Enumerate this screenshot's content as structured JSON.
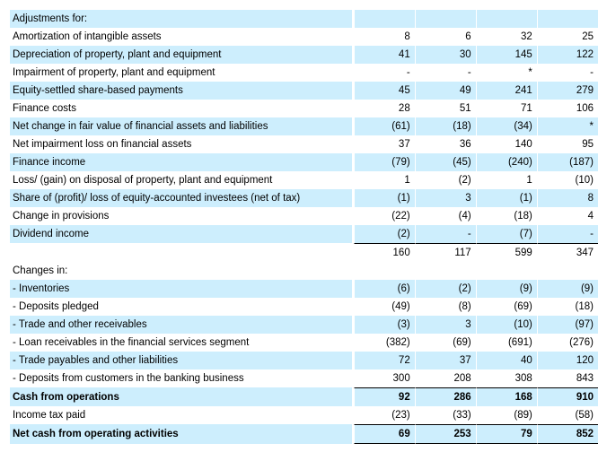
{
  "rows": [
    {
      "label": "Adjustments for:",
      "values": [
        "",
        "",
        "",
        ""
      ],
      "shaded": true
    },
    {
      "label": "Amortization of intangible assets",
      "values": [
        "8",
        "6",
        "32",
        "25"
      ]
    },
    {
      "label": "Depreciation of property, plant and equipment",
      "values": [
        "41",
        "30",
        "145",
        "122"
      ],
      "shaded": true
    },
    {
      "label": "Impairment of property, plant and equipment",
      "values": [
        "-",
        "-",
        "*",
        "-"
      ]
    },
    {
      "label": "Equity-settled share-based payments",
      "values": [
        "45",
        "49",
        "241",
        "279"
      ],
      "shaded": true
    },
    {
      "label": "Finance costs",
      "values": [
        "28",
        "51",
        "71",
        "106"
      ]
    },
    {
      "label": "Net change in fair value of financial assets and liabilities",
      "values": [
        "(61)",
        "(18)",
        "(34)",
        "*"
      ],
      "shaded": true
    },
    {
      "label": "Net impairment loss on financial assets",
      "values": [
        "37",
        "36",
        "140",
        "95"
      ]
    },
    {
      "label": "Finance income",
      "values": [
        "(79)",
        "(45)",
        "(240)",
        "(187)"
      ],
      "shaded": true
    },
    {
      "label": "Loss/ (gain) on disposal of property, plant and equipment",
      "values": [
        "1",
        "(2)",
        "1",
        "(10)"
      ]
    },
    {
      "label": "Share of (profit)/ loss of equity-accounted investees (net of tax)",
      "values": [
        "(1)",
        "3",
        "(1)",
        "8"
      ],
      "shaded": true
    },
    {
      "label": "Change in provisions",
      "values": [
        "(22)",
        "(4)",
        "(18)",
        "4"
      ]
    },
    {
      "label": "Dividend income",
      "values": [
        "(2)",
        "-",
        "(7)",
        "-"
      ],
      "shaded": true
    },
    {
      "label": "",
      "values": [
        "160",
        "117",
        "599",
        "347"
      ],
      "top": true
    },
    {
      "label": "Changes in:",
      "values": [
        "",
        "",
        "",
        ""
      ]
    },
    {
      "label": "- Inventories",
      "values": [
        "(6)",
        "(2)",
        "(9)",
        "(9)"
      ],
      "shaded": true
    },
    {
      "label": "- Deposits pledged",
      "values": [
        "(49)",
        "(8)",
        "(69)",
        "(18)"
      ]
    },
    {
      "label": "- Trade and other receivables",
      "values": [
        "(3)",
        "3",
        "(10)",
        "(97)"
      ],
      "shaded": true
    },
    {
      "label": "- Loan receivables in the financial services segment",
      "values": [
        "(382)",
        "(69)",
        "(691)",
        "(276)"
      ]
    },
    {
      "label": "- Trade payables and other liabilities",
      "values": [
        "72",
        "37",
        "40",
        "120"
      ],
      "shaded": true
    },
    {
      "label": "- Deposits from customers in the banking business",
      "values": [
        "300",
        "208",
        "308",
        "843"
      ]
    },
    {
      "label": "Cash from operations",
      "values": [
        "92",
        "286",
        "168",
        "910"
      ],
      "shaded": true,
      "bold": true,
      "top": true
    },
    {
      "label": "Income tax paid",
      "values": [
        "(23)",
        "(33)",
        "(89)",
        "(58)"
      ]
    },
    {
      "label": "Net cash from operating activities",
      "values": [
        "69",
        "253",
        "79",
        "852"
      ],
      "shaded": true,
      "bold": true,
      "top": true,
      "bottom": true
    }
  ]
}
